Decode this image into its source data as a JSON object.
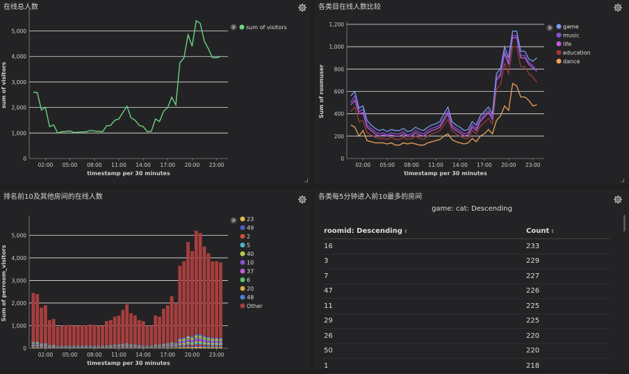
{
  "panels": {
    "tl": {
      "title": "在线总人数"
    },
    "tr": {
      "title": "各类目在线人数比较"
    },
    "bl": {
      "title": "排名前10及其他房间的在线人数"
    },
    "br": {
      "title": "各类每5分钟进入前10最多的房间"
    }
  },
  "table": {
    "caption": "game: cat: Descending",
    "columns": [
      "roomid: Descending",
      "Count"
    ],
    "rows": [
      [
        "16",
        "233"
      ],
      [
        "3",
        "229"
      ],
      [
        "7",
        "227"
      ],
      [
        "47",
        "226"
      ],
      [
        "11",
        "225"
      ],
      [
        "29",
        "225"
      ],
      [
        "26",
        "220"
      ],
      [
        "50",
        "220"
      ],
      [
        "1",
        "218"
      ]
    ]
  },
  "colors": {
    "green": "#6cd483",
    "game": "#7b9af3",
    "music": "#8a4fd2",
    "life": "#c05ed6",
    "education": "#9e3a3a",
    "dance": "#f0a45a",
    "other": "#a73e3e"
  },
  "chart_data": [
    {
      "type": "line",
      "title": "在线总人数",
      "xlabel": "timestamp per 30 minutes",
      "ylabel": "sum of visitors",
      "x_ticks": [
        "02:00",
        "05:00",
        "08:00",
        "11:00",
        "14:00",
        "17:00",
        "20:00",
        "23:00"
      ],
      "y_ticks": [
        "0",
        "1,000",
        "2,000",
        "3,000",
        "4,000",
        "5,000"
      ],
      "ylim": [
        0,
        5750
      ],
      "x": [
        0.5,
        1,
        1.5,
        2,
        2.5,
        3,
        3.5,
        4,
        4.5,
        5,
        5.5,
        6,
        6.5,
        7,
        7.5,
        8,
        8.5,
        9,
        9.5,
        10,
        10.5,
        11,
        11.5,
        12,
        12.5,
        13,
        13.5,
        14,
        14.5,
        15,
        15.5,
        16,
        16.5,
        17,
        17.5,
        18,
        18.5,
        19,
        19.5,
        20,
        20.5,
        21,
        21.5,
        22,
        22.5,
        23,
        23.5
      ],
      "series": [
        {
          "name": "sum of visitors",
          "color": "#6cd483",
          "values": [
            2600,
            2580,
            1900,
            2000,
            1250,
            1320,
            1000,
            1050,
            1060,
            1080,
            1020,
            1030,
            1040,
            1050,
            1100,
            1080,
            1060,
            1050,
            1280,
            1300,
            1500,
            1550,
            1800,
            2050,
            1600,
            1500,
            1300,
            1250,
            1050,
            1070,
            1550,
            1450,
            1850,
            2000,
            2400,
            2100,
            3750,
            3950,
            4850,
            4400,
            5400,
            5300,
            4600,
            4300,
            3950,
            3950,
            4000
          ]
        }
      ]
    },
    {
      "type": "line",
      "title": "各类目在线人数比较",
      "xlabel": "timestamp per 30 minutes",
      "ylabel": "Sum of roomuser",
      "x_ticks": [
        "02:00",
        "05:00",
        "08:00",
        "11:00",
        "14:00",
        "17:00",
        "20:00",
        "23:00"
      ],
      "y_ticks": [
        "0",
        "200",
        "400",
        "600",
        "800",
        "1,000",
        "1,200"
      ],
      "ylim": [
        0,
        1200
      ],
      "x": [
        0.5,
        1,
        1.5,
        2,
        2.5,
        3,
        3.5,
        4,
        4.5,
        5,
        5.5,
        6,
        6.5,
        7,
        7.5,
        8,
        8.5,
        9,
        9.5,
        10,
        10.5,
        11,
        11.5,
        12,
        12.5,
        13,
        13.5,
        14,
        14.5,
        15,
        15.5,
        16,
        16.5,
        17,
        17.5,
        18,
        18.5,
        19,
        19.5,
        20,
        20.5,
        21,
        21.5,
        22,
        22.5,
        23,
        23.5
      ],
      "series": [
        {
          "name": "game",
          "color": "#7b9af3",
          "values": [
            560,
            600,
            450,
            470,
            340,
            300,
            270,
            250,
            260,
            240,
            260,
            250,
            250,
            270,
            240,
            250,
            280,
            260,
            250,
            280,
            300,
            310,
            330,
            400,
            460,
            330,
            300,
            280,
            250,
            260,
            330,
            300,
            380,
            420,
            460,
            400,
            760,
            800,
            1000,
            900,
            1140,
            1140,
            960,
            960,
            890,
            870,
            900
          ]
        },
        {
          "name": "music",
          "color": "#8a4fd2",
          "values": [
            500,
            560,
            420,
            440,
            300,
            270,
            240,
            220,
            230,
            210,
            230,
            220,
            220,
            240,
            210,
            220,
            250,
            230,
            220,
            250,
            270,
            280,
            300,
            360,
            420,
            300,
            270,
            250,
            220,
            230,
            300,
            270,
            350,
            390,
            430,
            370,
            720,
            760,
            960,
            860,
            1100,
            1100,
            920,
            920,
            860,
            830,
            780
          ]
        },
        {
          "name": "life",
          "color": "#c05ed6",
          "values": [
            480,
            520,
            400,
            410,
            280,
            250,
            220,
            200,
            210,
            200,
            210,
            200,
            200,
            220,
            200,
            200,
            230,
            210,
            200,
            230,
            250,
            260,
            280,
            340,
            400,
            280,
            250,
            230,
            200,
            210,
            280,
            250,
            330,
            370,
            410,
            350,
            700,
            740,
            940,
            840,
            1080,
            1080,
            900,
            900,
            840,
            810,
            780
          ]
        },
        {
          "name": "education",
          "color": "#9e3a3a",
          "values": [
            420,
            460,
            330,
            340,
            230,
            210,
            190,
            180,
            180,
            170,
            190,
            170,
            170,
            190,
            170,
            180,
            200,
            180,
            170,
            200,
            220,
            230,
            250,
            300,
            350,
            250,
            220,
            200,
            180,
            180,
            250,
            220,
            290,
            320,
            360,
            310,
            620,
            660,
            850,
            760,
            1000,
            1000,
            820,
            820,
            760,
            730,
            680
          ]
        },
        {
          "name": "dance",
          "color": "#f0a45a",
          "values": [
            300,
            280,
            200,
            250,
            160,
            150,
            140,
            140,
            140,
            130,
            140,
            120,
            120,
            140,
            130,
            140,
            130,
            120,
            120,
            140,
            150,
            160,
            170,
            200,
            220,
            170,
            150,
            140,
            130,
            140,
            180,
            150,
            200,
            220,
            260,
            220,
            340,
            380,
            470,
            430,
            670,
            650,
            550,
            550,
            520,
            470,
            480
          ]
        }
      ]
    },
    {
      "type": "bar",
      "title": "排名前10及其他房间的在线人数",
      "xlabel": "timestamp per 30 minutes",
      "ylabel": "Sum of perroom_visitors",
      "x_ticks": [
        "02:00",
        "05:00",
        "08:00",
        "11:00",
        "14:00",
        "17:00",
        "20:00",
        "23:00"
      ],
      "y_ticks": [
        "0",
        "1,000",
        "2,000",
        "3,000",
        "4,000",
        "5,000"
      ],
      "ylim": [
        0,
        5750
      ],
      "totals": [
        2450,
        2400,
        1800,
        1900,
        1250,
        1300,
        950,
        1000,
        1020,
        1030,
        1000,
        1000,
        1010,
        1020,
        1050,
        1030,
        1000,
        1000,
        1200,
        1250,
        1400,
        1450,
        1700,
        1950,
        1550,
        1450,
        1250,
        1200,
        1000,
        1000,
        1450,
        1400,
        1750,
        1900,
        2300,
        2000,
        3650,
        3850,
        4700,
        4300,
        5200,
        5100,
        4500,
        4200,
        3850,
        3850,
        3800
      ],
      "legend": [
        "23",
        "49",
        "2",
        "5",
        "40",
        "10",
        "37",
        "6",
        "20",
        "48",
        "Other"
      ],
      "series_colors": [
        "#e0b94a",
        "#4f5fc9",
        "#c8503c",
        "#4fb3c9",
        "#b8c94f",
        "#8a4fd2",
        "#c05ed6",
        "#5fbf6a",
        "#d6a84f",
        "#4f7fd6",
        "#a73e3e"
      ]
    }
  ]
}
